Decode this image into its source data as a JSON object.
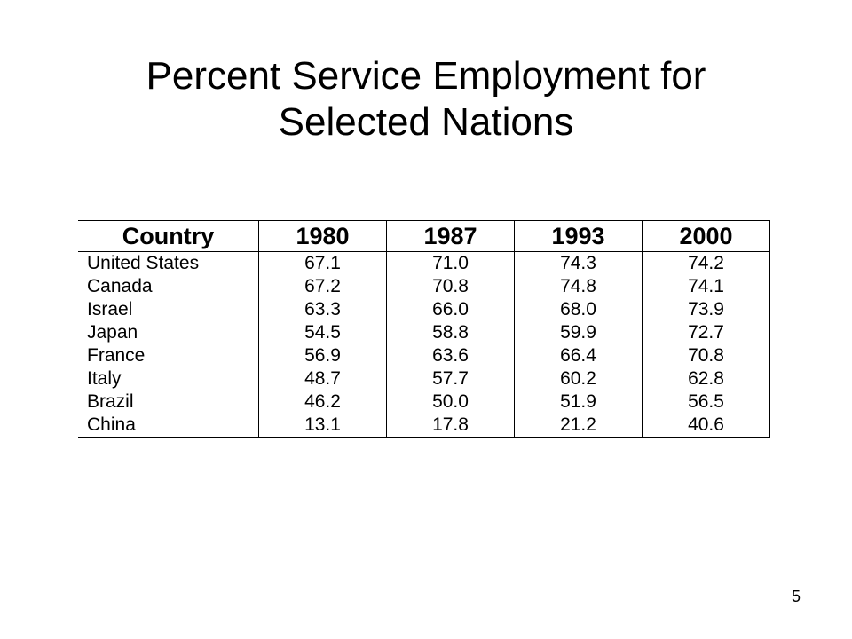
{
  "slide": {
    "title_line1": "Percent Service Employment for",
    "title_line2": "Selected Nations",
    "page_number": "5"
  },
  "table": {
    "headers": [
      "Country",
      "1980",
      "1987",
      "1993",
      "2000"
    ],
    "rows": [
      [
        "United States",
        "67.1",
        "71.0",
        "74.3",
        "74.2"
      ],
      [
        "Canada",
        "67.2",
        "70.8",
        "74.8",
        "74.1"
      ],
      [
        "Israel",
        "63.3",
        "66.0",
        "68.0",
        "73.9"
      ],
      [
        "Japan",
        "54.5",
        "58.8",
        "59.9",
        "72.7"
      ],
      [
        "France",
        "56.9",
        "63.6",
        "66.4",
        "70.8"
      ],
      [
        "Italy",
        "48.7",
        "57.7",
        "60.2",
        "62.8"
      ],
      [
        "Brazil",
        "46.2",
        "50.0",
        "51.9",
        "56.5"
      ],
      [
        "China",
        "13.1",
        "17.8",
        "21.2",
        "40.6"
      ]
    ]
  }
}
